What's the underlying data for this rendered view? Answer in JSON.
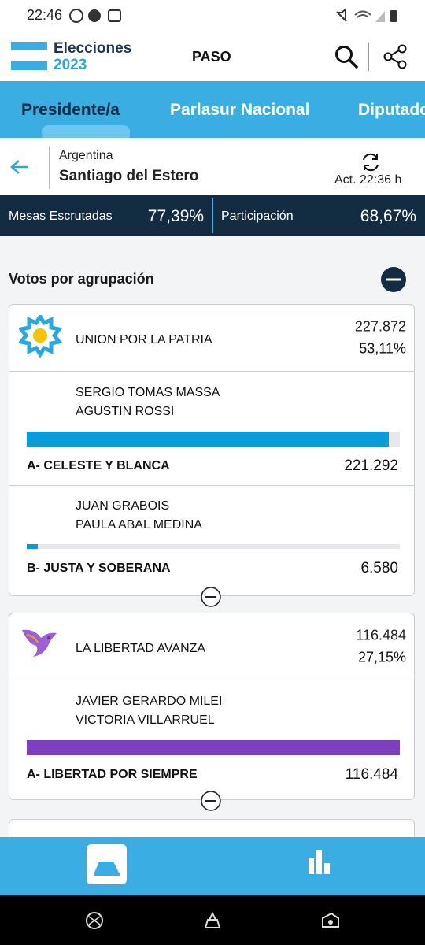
{
  "status_bar": {
    "time": "22:46"
  },
  "header": {
    "logo_top": "Elecciones",
    "logo_bottom": "2023",
    "title": "PASO"
  },
  "tabs": [
    "Presidente/a",
    "Parlasur Nacional",
    "Diputados"
  ],
  "location": {
    "country": "Argentina",
    "district": "Santiago del Estero",
    "updated": "Act. 22:36 h"
  },
  "stats": {
    "counted_label": "Mesas Escrutadas",
    "counted_value": "77,39%",
    "turnout_label": "Participación",
    "turnout_value": "68,67%"
  },
  "section_title": "Votos por agrupación",
  "parties": [
    {
      "name": "UNION POR LA PATRIA",
      "votes": {
        "value": 227872,
        "label": "227.872"
      },
      "percent": "53,11%",
      "color": "#0a9bd9",
      "lists": [
        {
          "candidates": [
            "SERGIO TOMAS MASSA",
            "AGUSTIN ROSSI"
          ],
          "name": "A- CELESTE Y BLANCA",
          "votes": {
            "value": 221292,
            "label": "221.292"
          }
        },
        {
          "candidates": [
            "JUAN GRABOIS",
            "PAULA ABAL MEDINA"
          ],
          "name": "B- JUSTA Y SOBERANA",
          "votes": {
            "value": 6580,
            "label": "6.580"
          }
        }
      ]
    },
    {
      "name": "LA LIBERTAD AVANZA",
      "votes": {
        "value": 116484,
        "label": "116.484"
      },
      "percent": "27,15%",
      "color": "#7b3fbf",
      "lists": [
        {
          "candidates": [
            "JAVIER GERARDO MILEI",
            "VICTORIA VILLARRUEL"
          ],
          "name": "A- LIBERTAD POR SIEMPRE",
          "votes": {
            "value": 116484,
            "label": "116.484"
          }
        }
      ]
    }
  ]
}
